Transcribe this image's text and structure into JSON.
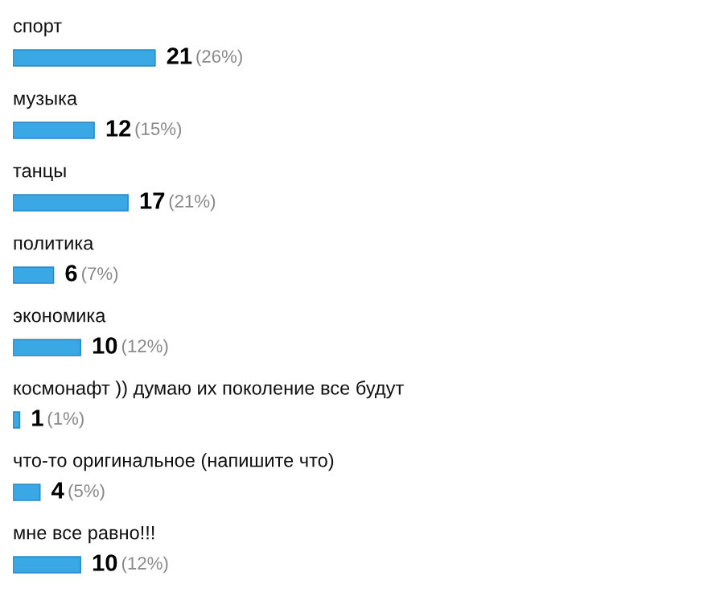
{
  "chart_data": {
    "type": "bar",
    "orientation": "horizontal",
    "categories": [
      "спорт",
      "музыка",
      "танцы",
      "политика",
      "экономика",
      "космонафт )) думаю их поколение все будут",
      "что-то оригинальное (напишите что)",
      "мне все равно!!!"
    ],
    "values": [
      21,
      12,
      17,
      6,
      10,
      1,
      4,
      10
    ],
    "value_labels": [
      "21 (26%)",
      "12 (15%)",
      "17 (21%)",
      "6 (7%)",
      "10 (12%)",
      "1 (1%)",
      "4 (5%)",
      "10 (12%)"
    ],
    "color": "#3aa8e4",
    "tick_labels": false
  }
}
